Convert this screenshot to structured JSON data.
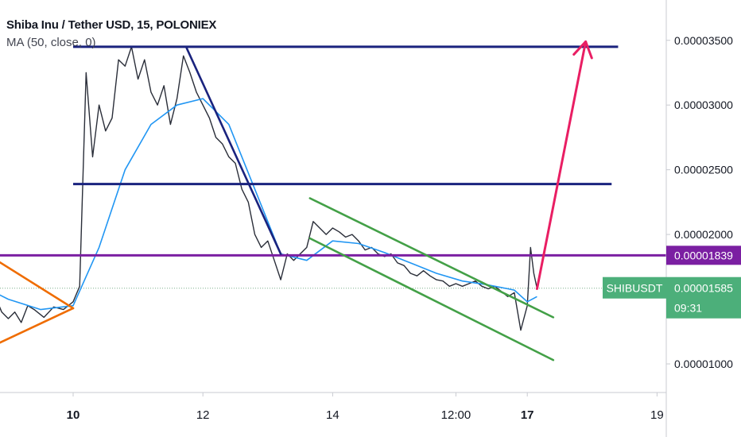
{
  "legend": {
    "title": "Shiba Inu / Tether USD, 15, POLONIEX",
    "indicator": "MA (50, close, 0)"
  },
  "colors": {
    "background": "#ffffff",
    "candles": "#2a2e39",
    "ma": "#2196f3",
    "resistance": "#1a237e",
    "pivot": "#7b1fa2",
    "triangle": "#ef6c00",
    "channel": "#43a047",
    "arrow": "#e91e63",
    "current_badge": "#4caf7a",
    "axis_text": "#131722"
  },
  "chart_data": {
    "type": "line",
    "title": "Shiba Inu / Tether USD, 15, POLONIEX",
    "x_tick_labels": [
      "10",
      "12",
      "14",
      "12:00",
      "17",
      "19"
    ],
    "y_tick_labels": [
      "0.00003500",
      "0.00003000",
      "0.00002500",
      "0.00002000",
      "0.00001000"
    ],
    "ylim": [
      5.5e-06,
      3.8e-05
    ],
    "grid": false,
    "price_path": [
      [
        8.6,
        1.75e-05
      ],
      [
        8.7,
        1.55e-05
      ],
      [
        8.8,
        1.52e-05
      ],
      [
        8.9,
        1.4e-05
      ],
      [
        9.0,
        1.35e-05
      ],
      [
        9.1,
        1.4e-05
      ],
      [
        9.2,
        1.32e-05
      ],
      [
        9.3,
        1.45e-05
      ],
      [
        9.4,
        1.42e-05
      ],
      [
        9.55,
        1.36e-05
      ],
      [
        9.7,
        1.44e-05
      ],
      [
        9.85,
        1.42e-05
      ],
      [
        10.0,
        1.48e-05
      ],
      [
        10.1,
        1.6e-05
      ],
      [
        10.2,
        3.25e-05
      ],
      [
        10.3,
        2.6e-05
      ],
      [
        10.4,
        3e-05
      ],
      [
        10.5,
        2.8e-05
      ],
      [
        10.6,
        2.9e-05
      ],
      [
        10.7,
        3.35e-05
      ],
      [
        10.8,
        3.3e-05
      ],
      [
        10.9,
        3.45e-05
      ],
      [
        11.0,
        3.2e-05
      ],
      [
        11.1,
        3.35e-05
      ],
      [
        11.2,
        3.1e-05
      ],
      [
        11.3,
        3e-05
      ],
      [
        11.4,
        3.15e-05
      ],
      [
        11.5,
        2.85e-05
      ],
      [
        11.6,
        3.05e-05
      ],
      [
        11.7,
        3.38e-05
      ],
      [
        11.8,
        3.25e-05
      ],
      [
        11.9,
        3.1e-05
      ],
      [
        12.0,
        3e-05
      ],
      [
        12.1,
        2.9e-05
      ],
      [
        12.2,
        2.75e-05
      ],
      [
        12.3,
        2.7e-05
      ],
      [
        12.4,
        2.6e-05
      ],
      [
        12.5,
        2.55e-05
      ],
      [
        12.6,
        2.35e-05
      ],
      [
        12.7,
        2.25e-05
      ],
      [
        12.8,
        2e-05
      ],
      [
        12.9,
        1.9e-05
      ],
      [
        13.0,
        1.95e-05
      ],
      [
        13.1,
        1.8e-05
      ],
      [
        13.2,
        1.65e-05
      ],
      [
        13.3,
        1.85e-05
      ],
      [
        13.4,
        1.8e-05
      ],
      [
        13.5,
        1.85e-05
      ],
      [
        13.6,
        1.9e-05
      ],
      [
        13.7,
        2.1e-05
      ],
      [
        13.8,
        2.05e-05
      ],
      [
        13.9,
        2e-05
      ],
      [
        14.0,
        2.05e-05
      ],
      [
        14.1,
        2.02e-05
      ],
      [
        14.2,
        1.98e-05
      ],
      [
        14.3,
        2e-05
      ],
      [
        14.4,
        1.95e-05
      ],
      [
        14.5,
        1.88e-05
      ],
      [
        14.6,
        1.9e-05
      ],
      [
        14.7,
        1.85e-05
      ],
      [
        14.8,
        1.83e-05
      ],
      [
        14.9,
        1.85e-05
      ],
      [
        15.0,
        1.78e-05
      ],
      [
        15.1,
        1.76e-05
      ],
      [
        15.2,
        1.7e-05
      ],
      [
        15.3,
        1.68e-05
      ],
      [
        15.4,
        1.72e-05
      ],
      [
        15.5,
        1.68e-05
      ],
      [
        15.6,
        1.65e-05
      ],
      [
        15.7,
        1.64e-05
      ],
      [
        15.8,
        1.6e-05
      ],
      [
        15.9,
        1.62e-05
      ],
      [
        16.0,
        1.6e-05
      ],
      [
        16.1,
        1.62e-05
      ],
      [
        16.2,
        1.64e-05
      ],
      [
        16.3,
        1.6e-05
      ],
      [
        16.4,
        1.58e-05
      ],
      [
        16.5,
        1.6e-05
      ],
      [
        16.6,
        1.56e-05
      ],
      [
        16.7,
        1.52e-05
      ],
      [
        16.8,
        1.55e-05
      ],
      [
        16.9,
        1.26e-05
      ],
      [
        17.0,
        1.45e-05
      ],
      [
        17.05,
        1.9e-05
      ],
      [
        17.1,
        1.7e-05
      ],
      [
        17.15,
        1.585e-05
      ]
    ],
    "ma50_path": [
      [
        8.6,
        1.6e-05
      ],
      [
        9.0,
        1.5e-05
      ],
      [
        9.5,
        1.42e-05
      ],
      [
        10.0,
        1.45e-05
      ],
      [
        10.4,
        1.9e-05
      ],
      [
        10.8,
        2.5e-05
      ],
      [
        11.2,
        2.85e-05
      ],
      [
        11.6,
        3e-05
      ],
      [
        12.0,
        3.05e-05
      ],
      [
        12.4,
        2.85e-05
      ],
      [
        12.8,
        2.35e-05
      ],
      [
        13.2,
        1.85e-05
      ],
      [
        13.6,
        1.8e-05
      ],
      [
        14.0,
        1.95e-05
      ],
      [
        14.4,
        1.93e-05
      ],
      [
        14.8,
        1.86e-05
      ],
      [
        15.2,
        1.78e-05
      ],
      [
        15.6,
        1.7e-05
      ],
      [
        16.0,
        1.64e-05
      ],
      [
        16.4,
        1.61e-05
      ],
      [
        16.8,
        1.57e-05
      ],
      [
        17.0,
        1.48e-05
      ],
      [
        17.15,
        1.52e-05
      ]
    ],
    "horizontal_levels": [
      {
        "value": 3.45e-05,
        "x_from": 10.0,
        "x_to": 18.4,
        "color": "#1a237e"
      },
      {
        "value": 2.39e-05,
        "x_from": 10.0,
        "x_to": 18.3,
        "color": "#1a237e"
      },
      {
        "value": 1.839e-05,
        "x_from": 8.6,
        "x_to": 19.3,
        "color": "#7b1fa2"
      }
    ],
    "trend_lines": [
      {
        "from": [
          11.75,
          3.44e-05
        ],
        "to": [
          13.2,
          1.85e-05
        ],
        "color": "#1a237e"
      },
      {
        "from": [
          8.6,
          1.87e-05
        ],
        "to": [
          10.0,
          1.43e-05
        ],
        "color": "#ef6c00"
      },
      {
        "from": [
          8.6,
          1.1e-05
        ],
        "to": [
          10.0,
          1.43e-05
        ],
        "color": "#ef6c00"
      },
      {
        "from": [
          13.65,
          2.28e-05
        ],
        "to": [
          17.4,
          1.36e-05
        ],
        "color": "#43a047"
      },
      {
        "from": [
          13.65,
          1.97e-05
        ],
        "to": [
          17.4,
          1.03e-05
        ],
        "color": "#43a047"
      }
    ],
    "arrow": {
      "from": [
        17.15,
        1.58e-05
      ],
      "to": [
        17.9,
        3.49e-05
      ],
      "color": "#e91e63"
    },
    "price_label": {
      "value": "0.00001839",
      "price": 1.839e-05
    },
    "current_price": {
      "symbol": "SHIBUSDT",
      "value": "0.00001585",
      "countdown": "09:31",
      "price": 1.585e-05
    }
  }
}
